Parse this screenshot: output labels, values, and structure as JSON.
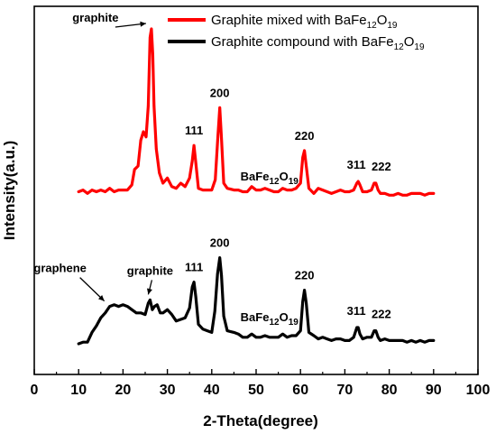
{
  "chart_data": {
    "type": "line",
    "title": "",
    "xlabel": "2-Theta(degree)",
    "ylabel": "Intensity(a.u.)",
    "xlim": [
      0,
      100
    ],
    "xticks": [
      0,
      10,
      20,
      30,
      40,
      50,
      60,
      70,
      80,
      90,
      100
    ],
    "y_ticks_shown": false,
    "grid": false,
    "legend_position": "top-right",
    "series": [
      {
        "name": "Graphite mixed with BaFe12O19",
        "legend_main": "Graphite mixed with BaFe",
        "legend_sub1": "12",
        "legend_mid": "O",
        "legend_sub2": "19",
        "color": "#ff0000",
        "points": [
          [
            10,
            0.05
          ],
          [
            11,
            0.06
          ],
          [
            12,
            0.04
          ],
          [
            13,
            0.06
          ],
          [
            14,
            0.05
          ],
          [
            15,
            0.06
          ],
          [
            16,
            0.05
          ],
          [
            17,
            0.07
          ],
          [
            18,
            0.05
          ],
          [
            19,
            0.06
          ],
          [
            20,
            0.06
          ],
          [
            21,
            0.06
          ],
          [
            22,
            0.09
          ],
          [
            22.6,
            0.18
          ],
          [
            23.4,
            0.2
          ],
          [
            24,
            0.35
          ],
          [
            24.6,
            0.4
          ],
          [
            25.2,
            0.37
          ],
          [
            25.7,
            0.55
          ],
          [
            26.1,
            0.95
          ],
          [
            26.4,
            1.0
          ],
          [
            26.7,
            0.85
          ],
          [
            27,
            0.55
          ],
          [
            27.5,
            0.3
          ],
          [
            28.2,
            0.16
          ],
          [
            29,
            0.1
          ],
          [
            30,
            0.13
          ],
          [
            31,
            0.08
          ],
          [
            32,
            0.07
          ],
          [
            33,
            0.1
          ],
          [
            34,
            0.08
          ],
          [
            35,
            0.13
          ],
          [
            35.6,
            0.23
          ],
          [
            36,
            0.32
          ],
          [
            36.4,
            0.22
          ],
          [
            37,
            0.07
          ],
          [
            38,
            0.06
          ],
          [
            39,
            0.06
          ],
          [
            40,
            0.06
          ],
          [
            40.8,
            0.12
          ],
          [
            41.4,
            0.38
          ],
          [
            41.8,
            0.54
          ],
          [
            42.2,
            0.36
          ],
          [
            42.7,
            0.1
          ],
          [
            43.5,
            0.07
          ],
          [
            45,
            0.06
          ],
          [
            46,
            0.06
          ],
          [
            47,
            0.05
          ],
          [
            48,
            0.05
          ],
          [
            49,
            0.08
          ],
          [
            50,
            0.06
          ],
          [
            51,
            0.06
          ],
          [
            52,
            0.07
          ],
          [
            53,
            0.06
          ],
          [
            54,
            0.05
          ],
          [
            55,
            0.05
          ],
          [
            56,
            0.07
          ],
          [
            57,
            0.06
          ],
          [
            58,
            0.06
          ],
          [
            59,
            0.07
          ],
          [
            60,
            0.1
          ],
          [
            60.5,
            0.25
          ],
          [
            60.9,
            0.29
          ],
          [
            61.3,
            0.2
          ],
          [
            61.9,
            0.07
          ],
          [
            63,
            0.04
          ],
          [
            64,
            0.07
          ],
          [
            65,
            0.06
          ],
          [
            66,
            0.05
          ],
          [
            67,
            0.04
          ],
          [
            68,
            0.05
          ],
          [
            69,
            0.06
          ],
          [
            70,
            0.05
          ],
          [
            71,
            0.05
          ],
          [
            72,
            0.06
          ],
          [
            72.7,
            0.1
          ],
          [
            73,
            0.11
          ],
          [
            73.4,
            0.09
          ],
          [
            74,
            0.05
          ],
          [
            75,
            0.05
          ],
          [
            76,
            0.06
          ],
          [
            76.6,
            0.1
          ],
          [
            77,
            0.1
          ],
          [
            77.5,
            0.06
          ],
          [
            78,
            0.04
          ],
          [
            79,
            0.04
          ],
          [
            80,
            0.03
          ],
          [
            81,
            0.03
          ],
          [
            82,
            0.04
          ],
          [
            83,
            0.03
          ],
          [
            84,
            0.03
          ],
          [
            85,
            0.04
          ],
          [
            86,
            0.04
          ],
          [
            87,
            0.04
          ],
          [
            88,
            0.03
          ],
          [
            89,
            0.04
          ],
          [
            90,
            0.04
          ]
        ]
      },
      {
        "name": "Graphite compound with BaFe12O19",
        "legend_main": "Graphite compound with BaFe",
        "legend_sub1": "12",
        "legend_mid": "O",
        "legend_sub2": "19",
        "color": "#000000",
        "points": [
          [
            10,
            0.05
          ],
          [
            11,
            0.06
          ],
          [
            12,
            0.06
          ],
          [
            13,
            0.12
          ],
          [
            14,
            0.16
          ],
          [
            15,
            0.21
          ],
          [
            16,
            0.24
          ],
          [
            17,
            0.28
          ],
          [
            18,
            0.29
          ],
          [
            19,
            0.28
          ],
          [
            20,
            0.29
          ],
          [
            21,
            0.28
          ],
          [
            22,
            0.26
          ],
          [
            23,
            0.24
          ],
          [
            24,
            0.24
          ],
          [
            25,
            0.23
          ],
          [
            25.7,
            0.3
          ],
          [
            26.1,
            0.32
          ],
          [
            26.6,
            0.26
          ],
          [
            27.1,
            0.28
          ],
          [
            27.7,
            0.29
          ],
          [
            28.4,
            0.24
          ],
          [
            29,
            0.24
          ],
          [
            30,
            0.26
          ],
          [
            31,
            0.23
          ],
          [
            32,
            0.19
          ],
          [
            33,
            0.2
          ],
          [
            34,
            0.21
          ],
          [
            35,
            0.27
          ],
          [
            35.6,
            0.4
          ],
          [
            36,
            0.43
          ],
          [
            36.4,
            0.34
          ],
          [
            37,
            0.17
          ],
          [
            38,
            0.14
          ],
          [
            39,
            0.13
          ],
          [
            40,
            0.12
          ],
          [
            40.7,
            0.25
          ],
          [
            41.3,
            0.48
          ],
          [
            41.8,
            0.58
          ],
          [
            42.2,
            0.47
          ],
          [
            42.7,
            0.22
          ],
          [
            43.5,
            0.13
          ],
          [
            45,
            0.12
          ],
          [
            46,
            0.11
          ],
          [
            47,
            0.09
          ],
          [
            48,
            0.09
          ],
          [
            49,
            0.11
          ],
          [
            50,
            0.09
          ],
          [
            51,
            0.09
          ],
          [
            52,
            0.1
          ],
          [
            53,
            0.09
          ],
          [
            54,
            0.09
          ],
          [
            55,
            0.09
          ],
          [
            56,
            0.11
          ],
          [
            57,
            0.09
          ],
          [
            58,
            0.1
          ],
          [
            59,
            0.1
          ],
          [
            60,
            0.13
          ],
          [
            60.5,
            0.31
          ],
          [
            60.9,
            0.38
          ],
          [
            61.3,
            0.3
          ],
          [
            61.9,
            0.12
          ],
          [
            63,
            0.1
          ],
          [
            64,
            0.08
          ],
          [
            65,
            0.09
          ],
          [
            66,
            0.08
          ],
          [
            67,
            0.07
          ],
          [
            68,
            0.08
          ],
          [
            69,
            0.08
          ],
          [
            70,
            0.07
          ],
          [
            71,
            0.07
          ],
          [
            72,
            0.09
          ],
          [
            72.7,
            0.15
          ],
          [
            73,
            0.15
          ],
          [
            73.4,
            0.11
          ],
          [
            74,
            0.08
          ],
          [
            75,
            0.09
          ],
          [
            76,
            0.09
          ],
          [
            76.6,
            0.13
          ],
          [
            77,
            0.13
          ],
          [
            77.5,
            0.09
          ],
          [
            78,
            0.07
          ],
          [
            79,
            0.08
          ],
          [
            80,
            0.07
          ],
          [
            81,
            0.07
          ],
          [
            82,
            0.07
          ],
          [
            83,
            0.07
          ],
          [
            84,
            0.06
          ],
          [
            85,
            0.07
          ],
          [
            86,
            0.06
          ],
          [
            87,
            0.07
          ],
          [
            88,
            0.06
          ],
          [
            89,
            0.07
          ],
          [
            90,
            0.07
          ]
        ]
      }
    ],
    "annotations": [
      {
        "text": "graphite",
        "series": 0,
        "x": 26.4,
        "arrow": true
      },
      {
        "text": "111",
        "series": 0,
        "x": 36
      },
      {
        "text": "200",
        "series": 0,
        "x": 41.8
      },
      {
        "text": "BaFe",
        "sub1": "12",
        "mid": "O",
        "sub2": "19",
        "series": 0,
        "x": 53
      },
      {
        "text": "220",
        "series": 0,
        "x": 60.9
      },
      {
        "text": "311",
        "series": 0,
        "x": 73
      },
      {
        "text": "222",
        "series": 0,
        "x": 77
      },
      {
        "text": "graphene",
        "series": 1,
        "x": 17,
        "arrow": true
      },
      {
        "text": "graphite",
        "series": 1,
        "x": 26.1,
        "arrow": true
      },
      {
        "text": "111",
        "series": 1,
        "x": 36
      },
      {
        "text": "200",
        "series": 1,
        "x": 41.8
      },
      {
        "text": "BaFe",
        "sub1": "12",
        "mid": "O",
        "sub2": "19",
        "series": 1,
        "x": 53
      },
      {
        "text": "220",
        "series": 1,
        "x": 60.9
      },
      {
        "text": "311",
        "series": 1,
        "x": 73
      },
      {
        "text": "222",
        "series": 1,
        "x": 77
      }
    ]
  }
}
